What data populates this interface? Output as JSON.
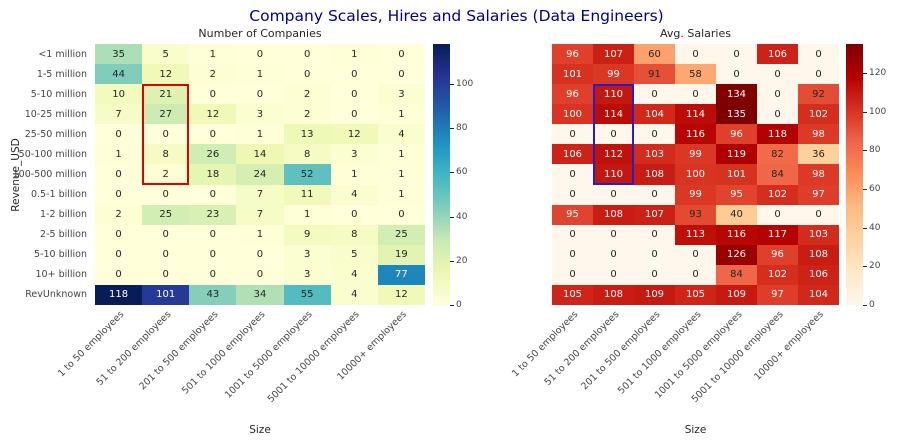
{
  "figure": {
    "title": "Company Scales, Hires and Salaries (Data Engineers)",
    "title_color": "#00008b"
  },
  "chart_data": [
    {
      "type": "heatmap",
      "title": "Number of Companies",
      "xlabel": "Size",
      "ylabel": "Revenue_USD",
      "colormap": "YlGnBu",
      "vmin": 0,
      "vmax": 118,
      "colorbar_ticks": [
        0,
        20,
        40,
        60,
        80,
        100
      ],
      "x_categories": [
        "1 to 50 employees",
        "51 to 200 employees",
        "201 to 500 employees",
        "501 to 1000 employees",
        "1001 to 5000 employees",
        "5001 to 10000 employees",
        "10000+ employees"
      ],
      "y_categories": [
        "<1 million",
        "1-5 million",
        "5-10 million",
        "10-25 million",
        "25-50 million",
        "50-100 million",
        "100-500 million",
        "0.5-1 billion",
        "1-2 billion",
        "2-5 billion",
        "5-10 billion",
        "10+ billion",
        "RevUnknown"
      ],
      "values": [
        [
          35,
          5,
          1,
          0,
          0,
          1,
          0
        ],
        [
          44,
          12,
          2,
          1,
          0,
          0,
          0
        ],
        [
          10,
          21,
          0,
          0,
          2,
          0,
          3
        ],
        [
          7,
          27,
          12,
          3,
          2,
          0,
          1
        ],
        [
          0,
          0,
          0,
          1,
          13,
          12,
          4
        ],
        [
          1,
          8,
          26,
          14,
          8,
          3,
          1
        ],
        [
          0,
          2,
          18,
          24,
          52,
          1,
          1
        ],
        [
          0,
          0,
          0,
          7,
          11,
          4,
          1
        ],
        [
          2,
          25,
          23,
          7,
          1,
          0,
          0
        ],
        [
          0,
          0,
          0,
          1,
          9,
          8,
          25
        ],
        [
          0,
          0,
          0,
          0,
          3,
          5,
          19
        ],
        [
          0,
          0,
          0,
          0,
          3,
          4,
          77
        ],
        [
          118,
          101,
          43,
          34,
          55,
          4,
          12
        ]
      ],
      "highlight": {
        "color": "#e00000",
        "col_index": 1,
        "row_start_index": 2,
        "row_end_index": 6,
        "x_category": "51 to 200 employees",
        "y_from": "5-10 million",
        "y_to": "100-500 million"
      }
    },
    {
      "type": "heatmap",
      "title": "Avg. Salaries",
      "xlabel": "Size",
      "ylabel": "",
      "colormap": "OrRd",
      "vmin": 0,
      "vmax": 135,
      "colorbar_ticks": [
        0,
        20,
        40,
        60,
        80,
        100,
        120
      ],
      "x_categories": [
        "1 to 50 employees",
        "51 to 200 employees",
        "201 to 500 employees",
        "501 to 1000 employees",
        "1001 to 5000 employees",
        "5001 to 10000 employees",
        "10000+ employees"
      ],
      "y_categories": [
        "<1 million",
        "1-5 million",
        "5-10 million",
        "10-25 million",
        "25-50 million",
        "50-100 million",
        "100-500 million",
        "0.5-1 billion",
        "1-2 billion",
        "2-5 billion",
        "5-10 billion",
        "10+ billion",
        "RevUnknown"
      ],
      "values": [
        [
          96,
          107,
          60,
          0,
          0,
          106,
          0
        ],
        [
          101,
          99,
          91,
          58,
          0,
          0,
          0
        ],
        [
          96,
          110,
          0,
          0,
          134,
          0,
          92
        ],
        [
          100,
          114,
          104,
          114,
          135,
          0,
          102
        ],
        [
          0,
          0,
          0,
          116,
          96,
          118,
          98
        ],
        [
          106,
          112,
          103,
          99,
          119,
          82,
          36
        ],
        [
          0,
          110,
          108,
          100,
          101,
          84,
          98
        ],
        [
          0,
          0,
          0,
          99,
          95,
          102,
          97
        ],
        [
          95,
          108,
          107,
          93,
          40,
          0,
          0
        ],
        [
          0,
          0,
          0,
          113,
          116,
          117,
          103
        ],
        [
          0,
          0,
          0,
          0,
          126,
          96,
          108
        ],
        [
          0,
          0,
          0,
          0,
          84,
          102,
          106
        ],
        [
          105,
          108,
          109,
          105,
          109,
          97,
          104
        ]
      ],
      "highlight": {
        "color": "#2020cc",
        "col_index": 1,
        "row_start_index": 2,
        "row_end_index": 6,
        "x_category": "51 to 200 employees",
        "y_from": "5-10 million",
        "y_to": "100-500 million"
      }
    }
  ]
}
